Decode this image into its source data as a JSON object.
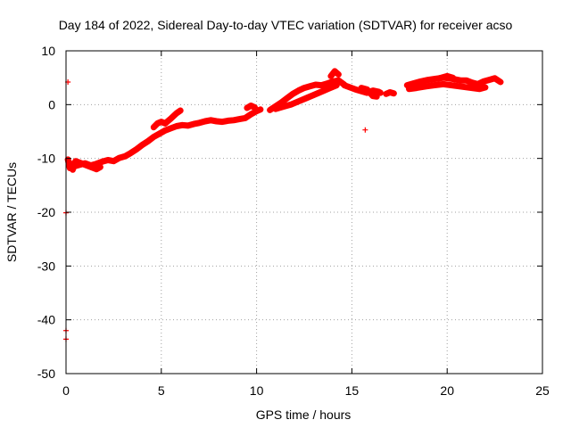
{
  "chart_data": {
    "type": "scatter",
    "title": "Day 184 of 2022, Sidereal Day-to-day VTEC variation (SDTVAR) for receiver acso",
    "xlabel": "GPS time / hours",
    "ylabel": "SDTVAR / TECUs",
    "xlim": [
      0,
      25
    ],
    "ylim": [
      -50,
      10
    ],
    "xticks": [
      0,
      5,
      10,
      15,
      20,
      25
    ],
    "yticks": [
      -50,
      -40,
      -30,
      -20,
      -10,
      0,
      10
    ],
    "grid": true,
    "marker_color": "#ff0000",
    "series": [
      {
        "name": "SDTVAR",
        "segments": [
          [
            [
              0.15,
              -10.8
            ],
            [
              0.4,
              -11.5
            ],
            [
              0.7,
              -11.2
            ],
            [
              1.0,
              -10.9
            ],
            [
              1.3,
              -11.3
            ],
            [
              1.6,
              -11.0
            ],
            [
              1.9,
              -10.6
            ],
            [
              2.2,
              -10.3
            ],
            [
              2.5,
              -10.5
            ],
            [
              2.8,
              -9.9
            ],
            [
              3.1,
              -9.6
            ],
            [
              3.4,
              -9.0
            ],
            [
              3.7,
              -8.3
            ],
            [
              4.0,
              -7.5
            ],
            [
              4.3,
              -6.8
            ],
            [
              4.6,
              -6.0
            ],
            [
              4.9,
              -5.4
            ],
            [
              5.2,
              -4.8
            ],
            [
              5.5,
              -4.4
            ],
            [
              5.8,
              -4.0
            ],
            [
              6.1,
              -3.8
            ],
            [
              6.4,
              -3.9
            ],
            [
              6.7,
              -3.6
            ],
            [
              7.0,
              -3.4
            ],
            [
              7.3,
              -3.1
            ],
            [
              7.6,
              -2.9
            ],
            [
              7.9,
              -3.1
            ],
            [
              8.2,
              -3.2
            ],
            [
              8.5,
              -3.0
            ],
            [
              8.8,
              -2.9
            ],
            [
              9.1,
              -2.7
            ],
            [
              9.4,
              -2.5
            ],
            [
              9.7,
              -1.8
            ],
            [
              10.0,
              -1.2
            ],
            [
              10.2,
              -0.9
            ]
          ],
          [
            [
              0.1,
              -10.2
            ],
            [
              0.2,
              -11.8
            ],
            [
              0.3,
              -11.0
            ],
            [
              0.35,
              -12.1
            ],
            [
              0.5,
              -10.5
            ],
            [
              1.6,
              -12.0
            ],
            [
              1.8,
              -11.6
            ]
          ],
          [
            [
              4.6,
              -4.2
            ],
            [
              4.8,
              -3.5
            ],
            [
              5.0,
              -3.2
            ],
            [
              5.2,
              -3.5
            ],
            [
              5.5,
              -2.6
            ],
            [
              5.8,
              -1.6
            ],
            [
              6.0,
              -1.1
            ]
          ],
          [
            [
              9.5,
              -0.6
            ],
            [
              9.7,
              -0.2
            ],
            [
              9.9,
              -0.5
            ]
          ],
          [
            [
              10.7,
              -1.0
            ],
            [
              11.0,
              -0.3
            ],
            [
              11.3,
              0.4
            ],
            [
              11.6,
              1.2
            ],
            [
              11.9,
              2.0
            ],
            [
              12.2,
              2.6
            ],
            [
              12.5,
              3.1
            ],
            [
              12.8,
              3.4
            ],
            [
              13.1,
              3.7
            ],
            [
              13.4,
              3.6
            ],
            [
              13.7,
              3.9
            ],
            [
              14.0,
              4.3
            ],
            [
              14.3,
              4.5
            ],
            [
              14.6,
              3.7
            ]
          ],
          [
            [
              11.0,
              -0.8
            ],
            [
              11.4,
              -0.4
            ],
            [
              11.8,
              0.0
            ],
            [
              12.2,
              0.6
            ],
            [
              12.6,
              1.2
            ],
            [
              13.0,
              1.8
            ],
            [
              13.4,
              2.4
            ],
            [
              13.8,
              3.0
            ],
            [
              14.2,
              3.6
            ]
          ],
          [
            [
              13.9,
              5.3
            ],
            [
              14.1,
              6.2
            ],
            [
              14.3,
              5.6
            ]
          ],
          [
            [
              14.6,
              3.6
            ],
            [
              14.9,
              3.2
            ],
            [
              15.2,
              2.8
            ],
            [
              15.5,
              2.5
            ],
            [
              15.8,
              2.2
            ],
            [
              16.1,
              2.6
            ],
            [
              16.4,
              2.4
            ],
            [
              16.5,
              2.2
            ]
          ],
          [
            [
              15.5,
              3.1
            ],
            [
              15.8,
              2.8
            ],
            [
              16.1,
              1.6
            ],
            [
              16.3,
              1.5
            ]
          ],
          [
            [
              16.8,
              2.0
            ],
            [
              17.0,
              2.3
            ],
            [
              17.2,
              2.1
            ]
          ],
          [
            [
              17.9,
              3.6
            ],
            [
              18.2,
              3.9
            ],
            [
              18.6,
              4.3
            ],
            [
              19.0,
              4.6
            ],
            [
              19.4,
              4.8
            ],
            [
              19.8,
              5.0
            ],
            [
              20.1,
              4.9
            ],
            [
              20.4,
              4.7
            ],
            [
              20.7,
              4.5
            ],
            [
              21.0,
              4.5
            ],
            [
              21.3,
              4.1
            ],
            [
              21.6,
              3.8
            ],
            [
              21.9,
              4.3
            ],
            [
              22.2,
              4.6
            ],
            [
              22.5,
              4.9
            ],
            [
              22.8,
              4.2
            ]
          ],
          [
            [
              18.0,
              2.9
            ],
            [
              18.4,
              3.1
            ],
            [
              18.9,
              3.4
            ],
            [
              19.3,
              3.6
            ],
            [
              19.8,
              3.8
            ],
            [
              21.7,
              2.9
            ],
            [
              22.0,
              3.2
            ]
          ],
          [
            [
              19.6,
              4.9
            ],
            [
              20.0,
              5.3
            ],
            [
              20.3,
              5.0
            ]
          ]
        ],
        "points": [
          [
            0.1,
            4.2
          ],
          [
            15.7,
            -4.7
          ],
          [
            0.0,
            -20.1
          ],
          [
            0.0,
            -42.0
          ],
          [
            0.0,
            -43.6
          ]
        ]
      }
    ]
  }
}
